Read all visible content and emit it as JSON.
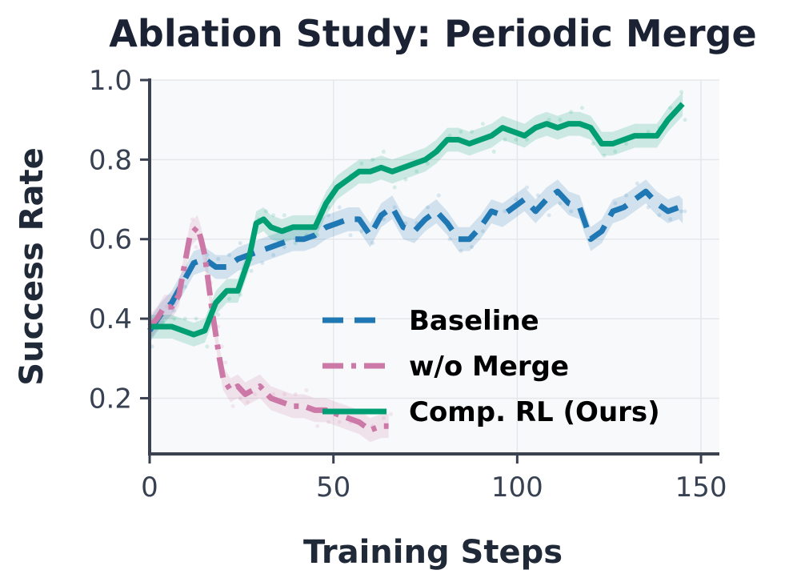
{
  "chart_data": {
    "type": "line",
    "title": "Ablation Study: Periodic Merge",
    "xlabel": "Training Steps",
    "ylabel": "Success Rate",
    "xlim": [
      0,
      155
    ],
    "ylim": [
      0.06,
      1.0
    ],
    "xticks": [
      0,
      50,
      100,
      150
    ],
    "yticks": [
      0.2,
      0.4,
      0.6,
      0.8,
      1.0
    ],
    "xtick_labels": [
      "0",
      "50",
      "100",
      "150"
    ],
    "ytick_labels": [
      "0.2",
      "0.4",
      "0.6",
      "0.8",
      "1.0"
    ],
    "grid": true,
    "legend_position": "lower-right",
    "colors": {
      "plot_bg": "#f8f9fb",
      "grid": "#e5e7eb",
      "axis": "#3a4150"
    },
    "series": [
      {
        "name": "Baseline",
        "color": "#1f77b4",
        "style": "dashed",
        "x": [
          0,
          3,
          6,
          9,
          12,
          15,
          18,
          21,
          24,
          27,
          30,
          33,
          36,
          39,
          42,
          45,
          48,
          51,
          54,
          57,
          60,
          63,
          66,
          69,
          72,
          75,
          78,
          81,
          84,
          87,
          90,
          93,
          96,
          99,
          102,
          105,
          108,
          111,
          114,
          117,
          120,
          123,
          126,
          129,
          132,
          135,
          138,
          141,
          144,
          145
        ],
        "y": [
          0.37,
          0.41,
          0.44,
          0.49,
          0.54,
          0.55,
          0.53,
          0.53,
          0.55,
          0.56,
          0.57,
          0.58,
          0.59,
          0.6,
          0.6,
          0.61,
          0.63,
          0.64,
          0.65,
          0.65,
          0.61,
          0.66,
          0.68,
          0.63,
          0.62,
          0.65,
          0.67,
          0.64,
          0.6,
          0.6,
          0.63,
          0.67,
          0.66,
          0.68,
          0.7,
          0.67,
          0.7,
          0.72,
          0.69,
          0.68,
          0.6,
          0.62,
          0.67,
          0.68,
          0.7,
          0.72,
          0.69,
          0.67,
          0.68,
          0.67
        ]
      },
      {
        "name": "w/o Merge",
        "color": "#cc79a7",
        "style": "dashdot",
        "x": [
          0,
          2,
          4,
          6,
          8,
          10,
          11,
          12,
          13,
          14,
          15,
          16,
          17,
          18,
          19,
          20,
          22,
          24,
          26,
          28,
          30,
          33,
          36,
          39,
          42,
          45,
          48,
          51,
          54,
          57,
          60,
          63,
          65
        ],
        "y": [
          0.38,
          0.4,
          0.43,
          0.43,
          0.46,
          0.56,
          0.61,
          0.62,
          0.63,
          0.6,
          0.56,
          0.49,
          0.42,
          0.36,
          0.3,
          0.25,
          0.22,
          0.23,
          0.21,
          0.22,
          0.23,
          0.2,
          0.19,
          0.18,
          0.18,
          0.17,
          0.17,
          0.16,
          0.15,
          0.14,
          0.12,
          0.13,
          0.13
        ]
      },
      {
        "name": "Comp. RL (Ours)",
        "color": "#009e73",
        "style": "solid",
        "x": [
          0,
          3,
          6,
          9,
          12,
          15,
          18,
          21,
          24,
          27,
          29,
          31,
          33,
          36,
          39,
          42,
          45,
          48,
          51,
          54,
          57,
          60,
          63,
          66,
          69,
          72,
          75,
          78,
          81,
          84,
          87,
          90,
          93,
          96,
          99,
          102,
          105,
          108,
          111,
          114,
          117,
          120,
          123,
          126,
          129,
          132,
          135,
          138,
          141,
          144,
          145
        ],
        "y": [
          0.38,
          0.38,
          0.38,
          0.37,
          0.36,
          0.37,
          0.44,
          0.47,
          0.47,
          0.55,
          0.64,
          0.65,
          0.63,
          0.62,
          0.63,
          0.63,
          0.63,
          0.69,
          0.73,
          0.75,
          0.77,
          0.77,
          0.78,
          0.77,
          0.78,
          0.79,
          0.8,
          0.82,
          0.85,
          0.85,
          0.84,
          0.85,
          0.86,
          0.88,
          0.87,
          0.86,
          0.88,
          0.89,
          0.88,
          0.89,
          0.89,
          0.88,
          0.84,
          0.84,
          0.85,
          0.86,
          0.86,
          0.86,
          0.9,
          0.93,
          0.94
        ]
      }
    ]
  }
}
